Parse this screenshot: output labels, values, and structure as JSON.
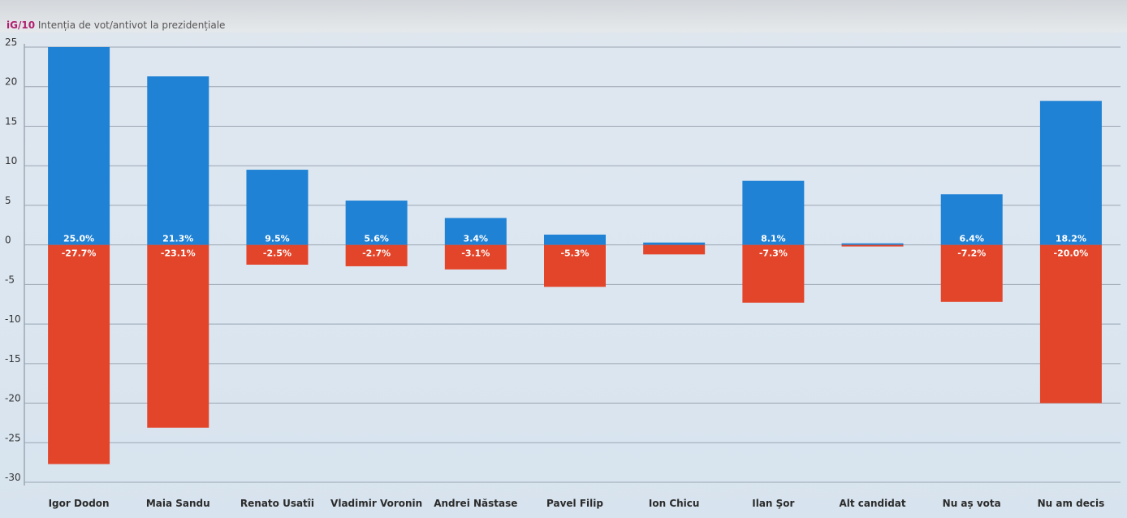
{
  "header": {
    "brand": "iG/10",
    "title": "Intenția de vot/antivot la prezidențiale"
  },
  "colors": {
    "pro": "#1f82d4",
    "contra": "#e3452a",
    "grid": "#9aa6b3"
  },
  "chart_data": {
    "type": "bar",
    "title": "Intenția de vot/antivot la prezidențiale",
    "xlabel": "",
    "ylabel": "",
    "ylim": [
      -30,
      25
    ],
    "yticks": [
      25,
      20,
      15,
      10,
      5,
      0,
      -5,
      -10,
      -15,
      -20,
      -25,
      -30
    ],
    "grid": true,
    "legend": "none",
    "categories": [
      "Igor Dodon",
      "Maia Sandu",
      "Renato Usatîi",
      "Vladimir Voronin",
      "Andrei Năstase",
      "Pavel Filip",
      "Ion Chicu",
      "Ilan Şor",
      "Alt candidat",
      "Nu aș vota",
      "Nu am decis"
    ],
    "series": [
      {
        "values": [
          25.0,
          21.3,
          9.5,
          5.6,
          3.4,
          1.3,
          0.3,
          8.1,
          0.2,
          6.4,
          18.2
        ],
        "labels": [
          "25.0%",
          "21.3%",
          "9.5%",
          "5.6%",
          "3.4%",
          "",
          "",
          "8.1%",
          "",
          "6.4%",
          "18.2%"
        ]
      },
      {
        "values": [
          -27.7,
          -23.1,
          -2.5,
          -2.7,
          -3.1,
          -5.3,
          -1.2,
          -7.3,
          -0.2,
          -7.2,
          -20.0
        ],
        "labels": [
          "-27.7%",
          "-23.1%",
          "-2.5%",
          "-2.7%",
          "-3.1%",
          "-5.3%",
          "",
          "-7.3%",
          "",
          "-7.2%",
          "-20.0%"
        ]
      }
    ]
  }
}
